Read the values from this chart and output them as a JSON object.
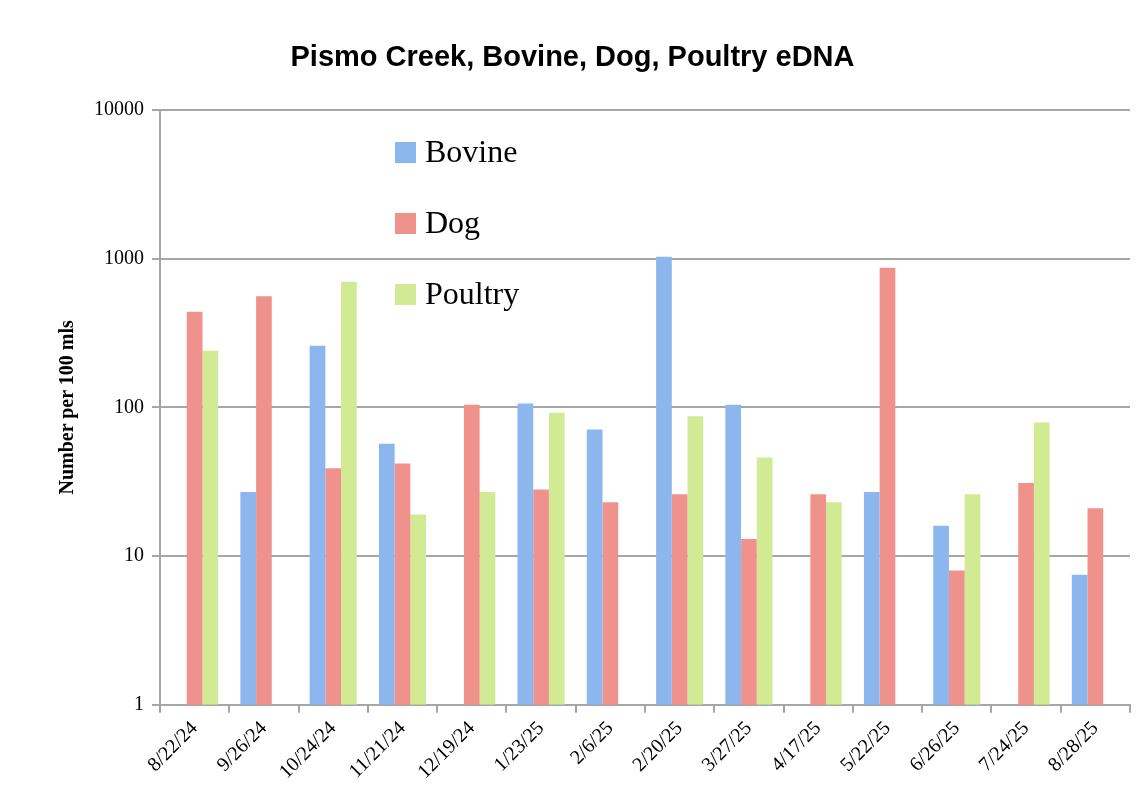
{
  "chart_data": {
    "type": "bar",
    "title": "Pismo Creek, Bovine, Dog, Poultry eDNA",
    "ylabel": "Number per 100 mls",
    "categories": [
      "8/22/24",
      "9/26/24",
      "10/24/24",
      "11/21/24",
      "12/19/24",
      "1/23/25",
      "2/6/25",
      "2/20/25",
      "3/27/25",
      "4/17/25",
      "5/22/25",
      "6/26/25",
      "7/24/25",
      "8/28/25"
    ],
    "series": [
      {
        "name": "Bovine",
        "color": "#8cb6ee",
        "values": [
          null,
          27,
          260,
          57,
          null,
          106,
          71,
          1030,
          104,
          null,
          27,
          16,
          null,
          7.5
        ]
      },
      {
        "name": "Dog",
        "color": "#f0928c",
        "values": [
          440,
          560,
          39,
          42,
          104,
          28,
          23,
          26,
          13,
          26,
          870,
          8,
          31,
          21
        ]
      },
      {
        "name": "Poultry",
        "color": "#d2ea94",
        "values": [
          240,
          null,
          700,
          19,
          27,
          92,
          null,
          87,
          46,
          23,
          null,
          26,
          79,
          null
        ]
      }
    ],
    "log": true,
    "ylim": [
      1,
      10000
    ],
    "yticks": [
      1,
      10,
      100,
      1000,
      10000
    ],
    "grid": "y",
    "legend": "top left"
  }
}
